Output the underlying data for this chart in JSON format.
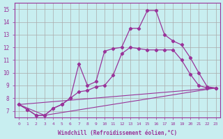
{
  "xlabel": "Windchill (Refroidissement éolien,°C)",
  "xlim": [
    -0.5,
    23.5
  ],
  "ylim": [
    6.5,
    15.5
  ],
  "yticks": [
    7,
    8,
    9,
    10,
    11,
    12,
    13,
    14,
    15
  ],
  "xticks": [
    0,
    1,
    2,
    3,
    4,
    5,
    6,
    7,
    8,
    9,
    10,
    11,
    12,
    13,
    14,
    15,
    16,
    17,
    18,
    19,
    20,
    21,
    22,
    23
  ],
  "background_color": "#c8eef0",
  "line_color": "#993399",
  "grid_color": "#aaaaaa",
  "line1_x": [
    0,
    1,
    2,
    3,
    4,
    5,
    6,
    7,
    8,
    9,
    10,
    11,
    12,
    13,
    14,
    15,
    16,
    17,
    18,
    19,
    20,
    21,
    22,
    23
  ],
  "line1_y": [
    7.5,
    7.1,
    6.65,
    6.65,
    7.2,
    7.5,
    8.0,
    10.7,
    9.0,
    9.3,
    11.7,
    11.9,
    12.0,
    13.5,
    13.5,
    14.9,
    14.9,
    13.0,
    12.5,
    12.2,
    11.2,
    10.0,
    8.9,
    8.8
  ],
  "line2_x": [
    0,
    1,
    2,
    3,
    4,
    5,
    6,
    7,
    8,
    9,
    10,
    11,
    12,
    13,
    14,
    15,
    16,
    17,
    18,
    19,
    20,
    21,
    22,
    23
  ],
  "line2_y": [
    7.5,
    7.1,
    6.65,
    6.65,
    7.2,
    7.5,
    8.0,
    8.5,
    8.6,
    8.9,
    9.0,
    9.8,
    11.5,
    12.0,
    11.9,
    11.8,
    11.8,
    11.8,
    11.8,
    11.0,
    9.9,
    9.0,
    8.8,
    8.8
  ],
  "line3_x": [
    0,
    3,
    23
  ],
  "line3_y": [
    7.5,
    6.65,
    8.8
  ],
  "line4_x": [
    0,
    23
  ],
  "line4_y": [
    7.5,
    8.8
  ]
}
